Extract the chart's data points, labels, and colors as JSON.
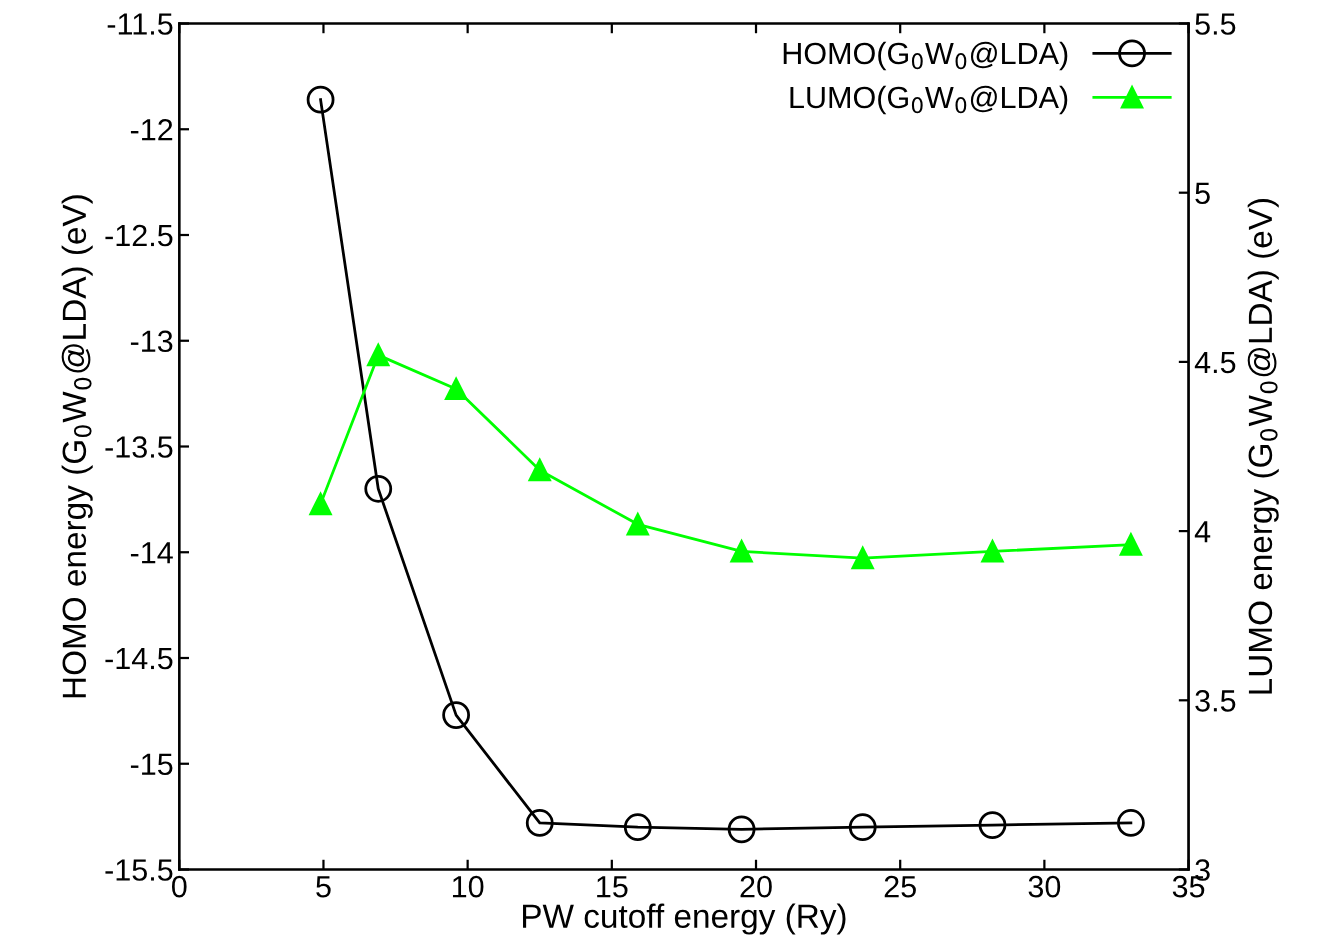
{
  "chart_data": {
    "type": "line",
    "xlabel": "PW cutoff energy (Ry)",
    "ylabel": "HOMO energy (G$_{0}$W$_{0}$@LDA) (eV)",
    "y2label": "LUMO energy (G$_{0}$W$_{0}$@LDA) (eV)",
    "x": [
      4.9,
      6.9,
      9.6,
      12.5,
      15.9,
      19.5,
      23.7,
      28.2,
      33.0
    ],
    "series": [
      {
        "name": "HOMO(G$_{0}$W$_{0}$@LDA)",
        "color": "#000000",
        "marker": "circle",
        "values": [
          -11.86,
          -13.7,
          -14.77,
          -15.28,
          -15.3,
          -15.31,
          -15.3,
          -15.29,
          -15.28
        ]
      },
      {
        "name": "LUMO(G$_{0}$W$_{0}$@LDA)",
        "color": "#00ff00",
        "marker": "triangle",
        "axis": "y2",
        "values": [
          4.08,
          4.52,
          4.42,
          4.18,
          4.02,
          3.94,
          3.92,
          3.94,
          3.96
        ]
      }
    ],
    "xlim": [
      0,
      35
    ],
    "xticks": [
      0,
      5,
      10,
      15,
      20,
      25,
      30,
      35
    ],
    "ylim": [
      -15.5,
      -11.5
    ],
    "yticks": [
      -15.5,
      -15,
      -14.5,
      -14,
      -13.5,
      -13,
      -12.5,
      -12,
      -11.5
    ],
    "y2lim": [
      3,
      5.5
    ],
    "y2ticks": [
      3,
      3.5,
      4,
      4.5,
      5,
      5.5
    ],
    "legend": "top right",
    "grid": false
  }
}
